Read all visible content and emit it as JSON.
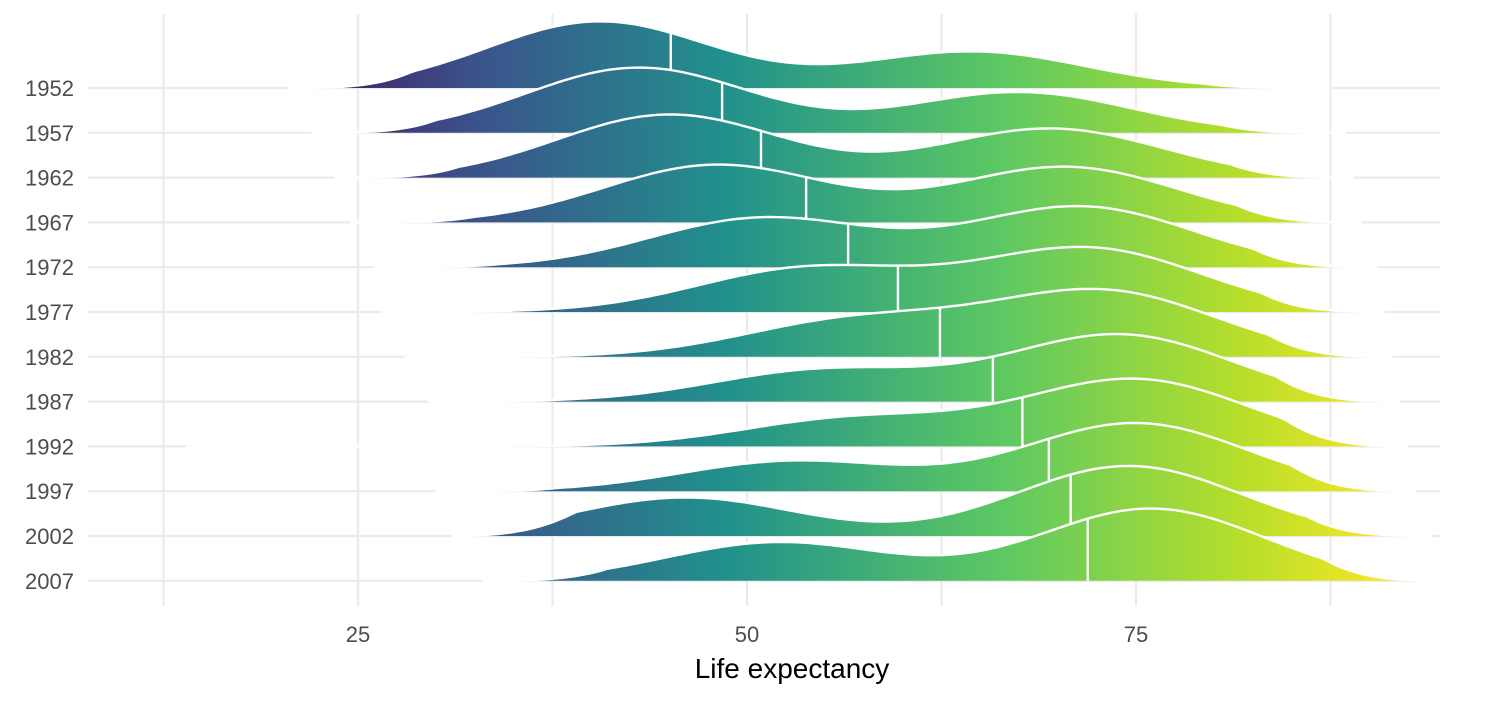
{
  "chart_data": {
    "type": "ridgeline",
    "xlabel": "Life expectancy",
    "ylabel": "",
    "xlim": [
      10,
      95
    ],
    "x_ticks": [
      25,
      50,
      75
    ],
    "x_minor_ticks": [
      12.5,
      37.5,
      62.5,
      87.5
    ],
    "grid": true,
    "legend": "none",
    "fill": "viridis gradient along x",
    "colors": {
      "gradient_stops": [
        "#440154",
        "#3b528b",
        "#21918c",
        "#5ec962",
        "#b5de2b",
        "#fde725"
      ],
      "outline": "#ffffff",
      "grid": "#ebebeb"
    },
    "categories": [
      "1952",
      "1957",
      "1962",
      "1967",
      "1972",
      "1977",
      "1982",
      "1987",
      "1992",
      "1997",
      "2002",
      "2007"
    ],
    "medians": [
      45.1,
      48.4,
      50.9,
      53.8,
      56.5,
      59.7,
      62.4,
      65.8,
      67.7,
      69.4,
      70.8,
      71.9
    ],
    "series": [
      {
        "name": "1952",
        "range": [
          20.5,
          87.5
        ],
        "peaks": [
          [
            40.5,
            0.95
          ],
          [
            64.5,
            0.52
          ]
        ]
      },
      {
        "name": "1957",
        "range": [
          22.0,
          88.5
        ],
        "peaks": [
          [
            43.0,
            0.93
          ],
          [
            67.5,
            0.58
          ]
        ]
      },
      {
        "name": "1962",
        "range": [
          23.5,
          89.0
        ],
        "peaks": [
          [
            45.0,
            0.9
          ],
          [
            69.5,
            0.7
          ]
        ]
      },
      {
        "name": "1967",
        "range": [
          24.5,
          89.5
        ],
        "peaks": [
          [
            48.0,
            0.82
          ],
          [
            70.5,
            0.79
          ]
        ]
      },
      {
        "name": "1972",
        "range": [
          26.0,
          90.5
        ],
        "peaks": [
          [
            51.0,
            0.7
          ],
          [
            71.5,
            0.86
          ]
        ]
      },
      {
        "name": "1977",
        "range": [
          26.5,
          91.0
        ],
        "peaks": [
          [
            54.0,
            0.62
          ],
          [
            72.0,
            0.9
          ]
        ]
      },
      {
        "name": "1982",
        "range": [
          28.0,
          91.5
        ],
        "peaks": [
          [
            57.0,
            0.52
          ],
          [
            73.0,
            0.92
          ]
        ]
      },
      {
        "name": "1987",
        "range": [
          29.5,
          92.0
        ],
        "peaks": [
          [
            55.0,
            0.45
          ],
          [
            74.0,
            0.95
          ]
        ]
      },
      {
        "name": "1992",
        "range": [
          14.0,
          92.5
        ],
        "peaks": [
          [
            57.0,
            0.4
          ],
          [
            75.0,
            0.95
          ]
        ]
      },
      {
        "name": "1997",
        "range": [
          30.0,
          93.0
        ],
        "peaks": [
          [
            53.0,
            0.43
          ],
          [
            75.0,
            0.97
          ]
        ]
      },
      {
        "name": "2002",
        "range": [
          31.0,
          94.0
        ],
        "peaks": [
          [
            46.0,
            0.55
          ],
          [
            74.5,
            1.0
          ]
        ]
      },
      {
        "name": "2007",
        "range": [
          33.0,
          95.0
        ],
        "peaks": [
          [
            52.0,
            0.55
          ],
          [
            76.0,
            1.03
          ]
        ]
      }
    ]
  }
}
